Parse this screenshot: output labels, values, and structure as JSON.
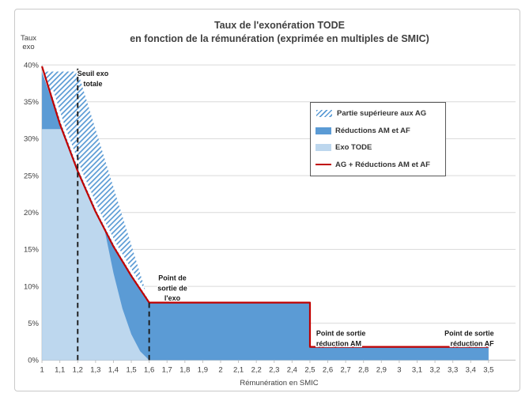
{
  "colors": {
    "light_blue": "#BDD7EE",
    "medium_blue": "#5B9BD5",
    "red_line": "#C00000",
    "gridline": "#D9D9D9",
    "axis_line": "#BFBFBF",
    "tick_text": "#404040",
    "annotation_text": "#1a1a1a",
    "dashed_line": "#1a1a1a",
    "hatch_stripe": "#5B9BD5",
    "hatch_background": "#ffffff"
  },
  "chart_data": {
    "type": "area",
    "title": {
      "line1": "Taux de l'exonération TODE",
      "line2": "en fonction de la rémunération (exprimée en multiples de SMIC)"
    },
    "y_axis_label": {
      "line1": "Taux",
      "line2": "exo"
    },
    "x_axis_label": "Rémunération en SMIC",
    "xlim": [
      1,
      3.5
    ],
    "ylim": [
      0,
      40
    ],
    "grid": true,
    "legend_position": "upper-right-inside",
    "x_tick_values": [
      1,
      1.1,
      1.2,
      1.3,
      1.4,
      1.5,
      1.6,
      1.7,
      1.8,
      1.9,
      2,
      2.1,
      2.2,
      2.3,
      2.4,
      2.5,
      2.6,
      2.7,
      2.8,
      2.9,
      3,
      3.1,
      3.2,
      3.3,
      3.4,
      3.5
    ],
    "x_tick_labels": [
      "1",
      "1,1",
      "1,2",
      "1,3",
      "1,4",
      "1,5",
      "1,6",
      "1,7",
      "1,8",
      "1,9",
      "2",
      "2,1",
      "2,2",
      "2,3",
      "2,4",
      "2,5",
      "2,6",
      "2,7",
      "2,8",
      "2,9",
      "3",
      "3,1",
      "3,2",
      "3,3",
      "3,4",
      "3,5"
    ],
    "y_tick_values": [
      0,
      5,
      10,
      15,
      20,
      25,
      30,
      35,
      40
    ],
    "y_tick_labels": [
      "0%",
      "5%",
      "10%",
      "15%",
      "20%",
      "25%",
      "30%",
      "35%",
      "40%"
    ],
    "series": [
      {
        "name": "Partie supérieure aux AG",
        "type": "area",
        "fill": "hatched",
        "color": "#5B9BD5",
        "points": [
          [
            1.01,
            39.1
          ],
          [
            1.2,
            39.1
          ],
          [
            1.6,
            7.8
          ],
          [
            1.5,
            11.4
          ],
          [
            1.4,
            15.4
          ],
          [
            1.3,
            20.1
          ],
          [
            1.2,
            25.6
          ],
          [
            1.1,
            32.0
          ],
          [
            1.04,
            36.4
          ]
        ]
      },
      {
        "name": "Réductions AM et AF",
        "type": "area",
        "fill": "solid",
        "color": "#5B9BD5",
        "points": [
          [
            1,
            0
          ],
          [
            1,
            39.1
          ],
          [
            1.1,
            32.0
          ],
          [
            1.2,
            25.6
          ],
          [
            1.3,
            20.1
          ],
          [
            1.4,
            15.4
          ],
          [
            1.5,
            11.4
          ],
          [
            1.6,
            7.8
          ],
          [
            2.5,
            7.8
          ],
          [
            2.5,
            1.8
          ],
          [
            3.5,
            1.8
          ],
          [
            3.5,
            0
          ]
        ]
      },
      {
        "name": "Exo TODE",
        "type": "area",
        "fill": "solid",
        "color": "#BDD7EE",
        "points": [
          [
            1,
            0
          ],
          [
            1,
            31.3
          ],
          [
            1.11,
            31.3
          ],
          [
            1.2,
            25.6
          ],
          [
            1.3,
            20.1
          ],
          [
            1.35,
            17.7
          ],
          [
            1.4,
            11.8
          ],
          [
            1.45,
            7.0
          ],
          [
            1.5,
            3.5
          ],
          [
            1.55,
            1.2
          ],
          [
            1.6,
            0
          ]
        ]
      },
      {
        "name": "AG + Réductions AM et AF",
        "type": "line",
        "color": "#C00000",
        "points": [
          [
            1,
            39.8
          ],
          [
            1.1,
            32.0
          ],
          [
            1.2,
            25.6
          ],
          [
            1.3,
            20.1
          ],
          [
            1.4,
            15.4
          ],
          [
            1.5,
            11.4
          ],
          [
            1.6,
            7.8
          ],
          [
            2.5,
            7.8
          ],
          [
            2.5,
            1.8
          ],
          [
            3.5,
            1.8
          ]
        ]
      }
    ],
    "dashed_lines": [
      {
        "x": 1.2,
        "y_from": 0,
        "y_to": 39.5
      },
      {
        "x": 1.6,
        "y_from": 0,
        "y_to": 7.8
      }
    ],
    "annotations": [
      {
        "lines": [
          "Seuil exo",
          "totale"
        ],
        "x": 1.285,
        "y": 38.5,
        "align": "center"
      },
      {
        "lines": [
          "Point de",
          "sortie de",
          "l'exo"
        ],
        "x": 1.73,
        "y": 10.8,
        "align": "center"
      },
      {
        "lines": [
          "Point de sortie",
          "réduction AM"
        ],
        "x": 2.535,
        "y": 3.3,
        "align": "left"
      },
      {
        "lines": [
          "Point de sortie",
          "réduction AF"
        ],
        "x": 3.53,
        "y": 3.3,
        "align": "right"
      }
    ],
    "key_values": {
      "exo_tode_net_rate_pct": 31.3,
      "am_af_band_pct": 7.8,
      "af_band_pct": 1.8,
      "ag_am_af_at_1_smic_pct": 39.8,
      "seuil_exo_totale_smic": 1.2,
      "point_sortie_exo_smic": 1.6,
      "point_sortie_reduction_am_smic": 2.5,
      "point_sortie_reduction_af_smic": 3.5
    }
  }
}
